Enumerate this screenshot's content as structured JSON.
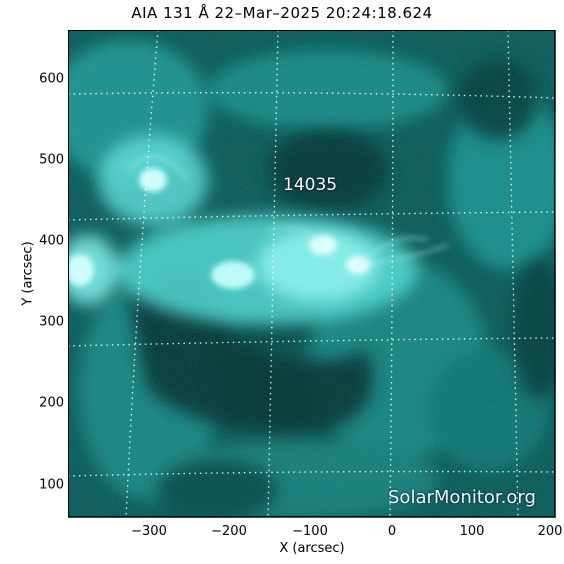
{
  "title": "AIA 131 Å 22–Mar–2025 20:24:18.624",
  "x_label": "X (arcsec)",
  "y_label": "Y (arcsec)",
  "x_ticks": [
    "−300",
    "−200",
    "−100",
    "0",
    "100",
    "200"
  ],
  "y_ticks": [
    "600",
    "500",
    "400",
    "300",
    "200",
    "100"
  ],
  "region_label": "14035",
  "watermark": "SolarMonitor.org",
  "colors": {
    "image_dark": "#022a2a",
    "image_bright": "#e8ffff",
    "accent": "#1fb8b8"
  }
}
